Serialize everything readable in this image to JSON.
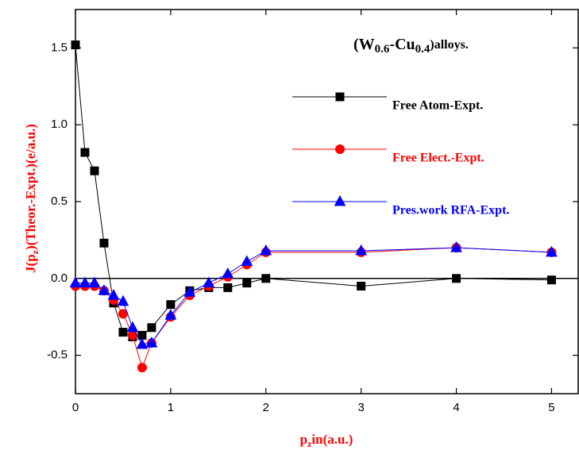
{
  "chart_data": {
    "type": "line",
    "annotation": [
      "(W",
      "0.6",
      "-Cu",
      "0.4",
      ")alloys."
    ],
    "xlabel": [
      "p",
      "z",
      "in(a.u.)"
    ],
    "ylabel": [
      "J(p",
      "z",
      ")(Theor.-Expt.)(e/a.u.)"
    ],
    "label_color": "#ff0000",
    "x": [
      0,
      0.1,
      0.2,
      0.3,
      0.4,
      0.5,
      0.6,
      0.7,
      0.8,
      1.0,
      1.2,
      1.4,
      1.6,
      1.8,
      2,
      3,
      4,
      5
    ],
    "series": [
      {
        "name": "Free Atom-Expt.",
        "color": "#000000",
        "marker": "square",
        "values": [
          1.52,
          0.82,
          0.7,
          0.23,
          -0.16,
          -0.35,
          -0.38,
          -0.37,
          -0.32,
          -0.17,
          -0.08,
          -0.06,
          -0.06,
          -0.03,
          0.0,
          -0.05,
          0.0,
          -0.01
        ]
      },
      {
        "name": "Free Elect.-Expt.",
        "color": "#ff0000",
        "marker": "circle",
        "values": [
          -0.05,
          -0.05,
          -0.05,
          -0.08,
          -0.14,
          -0.23,
          -0.37,
          -0.58,
          -0.42,
          -0.25,
          -0.11,
          -0.05,
          0.01,
          0.09,
          0.17,
          0.17,
          0.2,
          0.17
        ]
      },
      {
        "name": "Pres.work RFA-Expt.",
        "color": "#0000ff",
        "marker": "triangle",
        "values": [
          -0.03,
          -0.03,
          -0.03,
          -0.08,
          -0.11,
          -0.15,
          -0.32,
          -0.43,
          -0.42,
          -0.24,
          -0.09,
          -0.03,
          0.03,
          0.11,
          0.18,
          0.18,
          0.2,
          0.17
        ]
      }
    ],
    "xlim": [
      0,
      5.28
    ],
    "xticks": [
      0,
      1,
      2,
      3,
      4,
      5
    ],
    "ylim": [
      -0.75,
      1.75
    ],
    "yticks": [
      -0.5,
      {
        "value": 0,
        "label": "0.0"
      },
      0.5,
      {
        "value": 1,
        "label": "1.0"
      },
      1.5
    ],
    "zero_line": true
  }
}
